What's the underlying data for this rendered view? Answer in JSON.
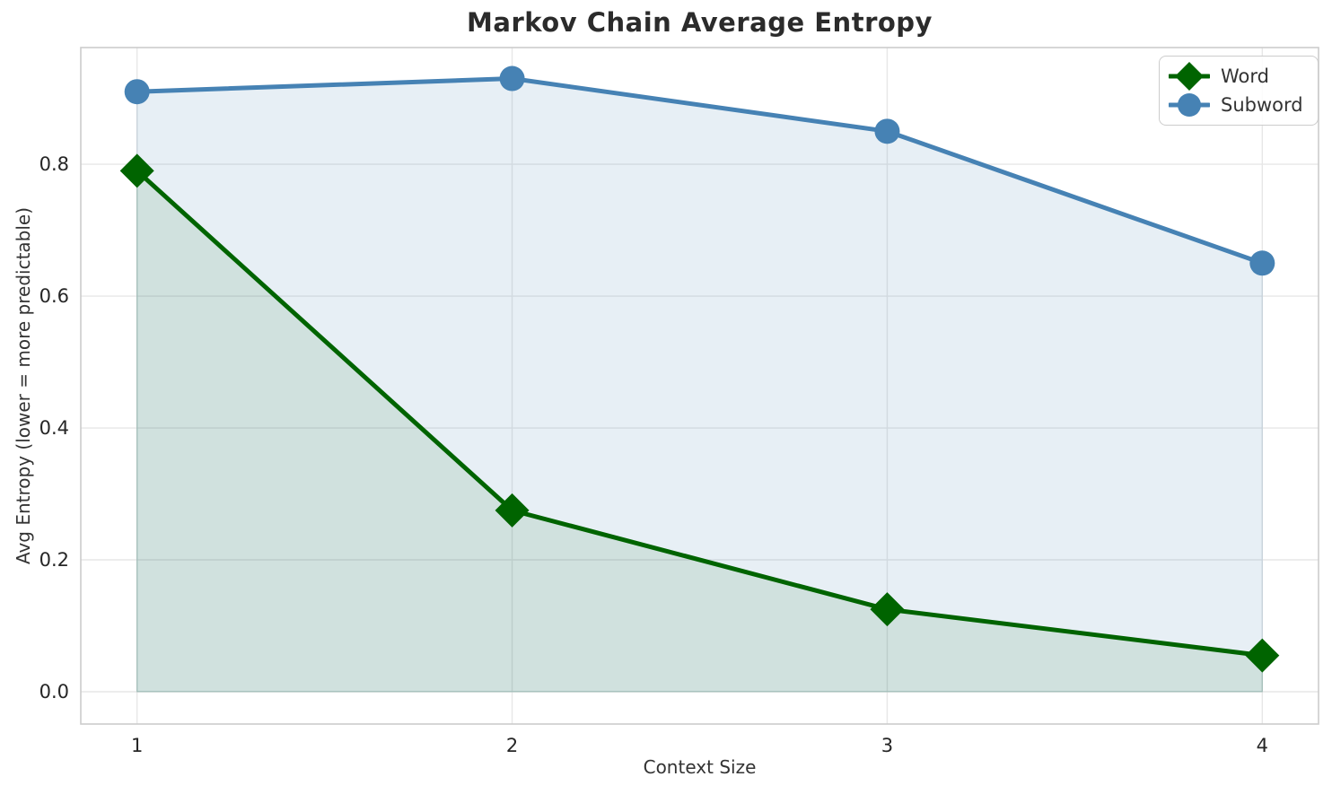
{
  "chart_data": {
    "type": "line",
    "title": "Markov Chain Average Entropy",
    "xlabel": "Context Size",
    "ylabel": "Avg Entropy (lower = more predictable)",
    "x": [
      1,
      2,
      3,
      4
    ],
    "series": [
      {
        "name": "Word",
        "values": [
          0.79,
          0.275,
          0.125,
          0.055
        ],
        "color": "#006400",
        "marker": "diamond",
        "fill": true,
        "fill_color": "rgba(0,100,0,0.10)",
        "fill_edge": "rgba(0,100,0,0.18)"
      },
      {
        "name": "Subword",
        "values": [
          0.91,
          0.93,
          0.85,
          0.65
        ],
        "color": "#4682b4",
        "marker": "circle",
        "fill": true,
        "fill_color": "rgba(70,130,180,0.13)",
        "fill_edge": "rgba(70,130,180,0.18)"
      }
    ],
    "fill_baseline": 0,
    "xticks": {
      "values": [
        1,
        2,
        3,
        4
      ],
      "labels": [
        "1",
        "2",
        "3",
        "4"
      ]
    },
    "yticks": {
      "values": [
        0.0,
        0.2,
        0.4,
        0.6,
        0.8
      ],
      "labels": [
        "0.0",
        "0.2",
        "0.4",
        "0.6",
        "0.8"
      ]
    },
    "xlim": [
      0.85,
      4.15
    ],
    "ylim": [
      -0.049,
      0.977
    ],
    "grid": true,
    "legend_position": "upper right",
    "colors": {
      "grid": "#e7e7e7",
      "spine": "#cccccc",
      "tick_label": "#262626",
      "axis_label": "#333333",
      "title": "#2b2b2b",
      "background": "#ffffff"
    }
  }
}
